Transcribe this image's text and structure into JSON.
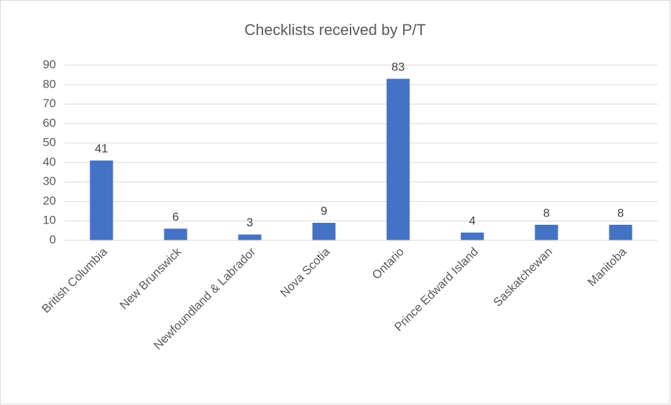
{
  "chart_data": {
    "type": "bar",
    "title": "Checklists received by P/T",
    "categories": [
      "British Columbia",
      "New Brunswick",
      "Newfoundland & Labrador",
      "Nova Scotia",
      "Ontario",
      "Prince Edward Island",
      "Saskatchewan",
      "Manitoba"
    ],
    "values": [
      41,
      6,
      3,
      9,
      83,
      4,
      8,
      8
    ],
    "color": "#4472c4",
    "ylim": [
      0,
      90
    ],
    "yticks": [
      0,
      10,
      20,
      30,
      40,
      50,
      60,
      70,
      80,
      90
    ],
    "grid": true,
    "data_labels": true
  }
}
